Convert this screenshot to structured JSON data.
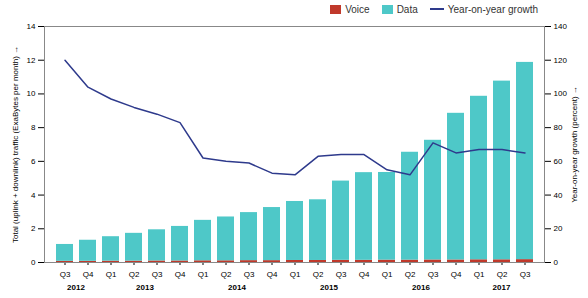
{
  "chart_data": {
    "type": "bar",
    "stacked": true,
    "categories": [
      "Q3",
      "Q4",
      "Q1",
      "Q2",
      "Q3",
      "Q4",
      "Q1",
      "Q2",
      "Q3",
      "Q4",
      "Q1",
      "Q2",
      "Q3",
      "Q4",
      "Q1",
      "Q2",
      "Q3",
      "Q4",
      "Q1",
      "Q2",
      "Q3"
    ],
    "series": [
      {
        "name": "Voice",
        "color": "#C0392B",
        "values": [
          0.07,
          0.07,
          0.08,
          0.08,
          0.09,
          0.09,
          0.1,
          0.1,
          0.11,
          0.11,
          0.12,
          0.12,
          0.13,
          0.13,
          0.14,
          0.14,
          0.15,
          0.15,
          0.16,
          0.16,
          0.17
        ]
      },
      {
        "name": "Data",
        "color": "#4EC8C8",
        "values": [
          1.0,
          1.25,
          1.45,
          1.65,
          1.85,
          2.05,
          2.4,
          2.6,
          2.85,
          3.15,
          3.5,
          3.6,
          4.7,
          5.2,
          5.2,
          6.4,
          7.1,
          8.7,
          9.7,
          10.6,
          11.7
        ]
      },
      {
        "name": "Year-on-year growth",
        "type": "line",
        "axis": "y2",
        "color": "#2E3A8C",
        "values": [
          120,
          104,
          97,
          92,
          88,
          83,
          62,
          60,
          59,
          53,
          52,
          63,
          64,
          64,
          55,
          52,
          71,
          65,
          67,
          67,
          65
        ]
      }
    ],
    "ylabel": "Total (uplink + downlink) traffic (ExaBytes per month)",
    "y2label": "Year-on-year growth (percent)",
    "ylim": [
      0,
      14
    ],
    "yticks": [
      0,
      2,
      4,
      6,
      8,
      10,
      12,
      14
    ],
    "y2lim": [
      0,
      140
    ],
    "y2ticks": [
      0,
      20,
      40,
      60,
      80,
      100,
      120,
      140
    ],
    "grid": false,
    "annotations": [
      {
        "text": "2012",
        "from": 0,
        "to": 1
      },
      {
        "text": "2013",
        "from": 2,
        "to": 5
      },
      {
        "text": "2014",
        "from": 6,
        "to": 9
      },
      {
        "text": "2015",
        "from": 10,
        "to": 13
      },
      {
        "text": "2016",
        "from": 14,
        "to": 17
      },
      {
        "text": "2017",
        "from": 18,
        "to": 20
      }
    ]
  }
}
